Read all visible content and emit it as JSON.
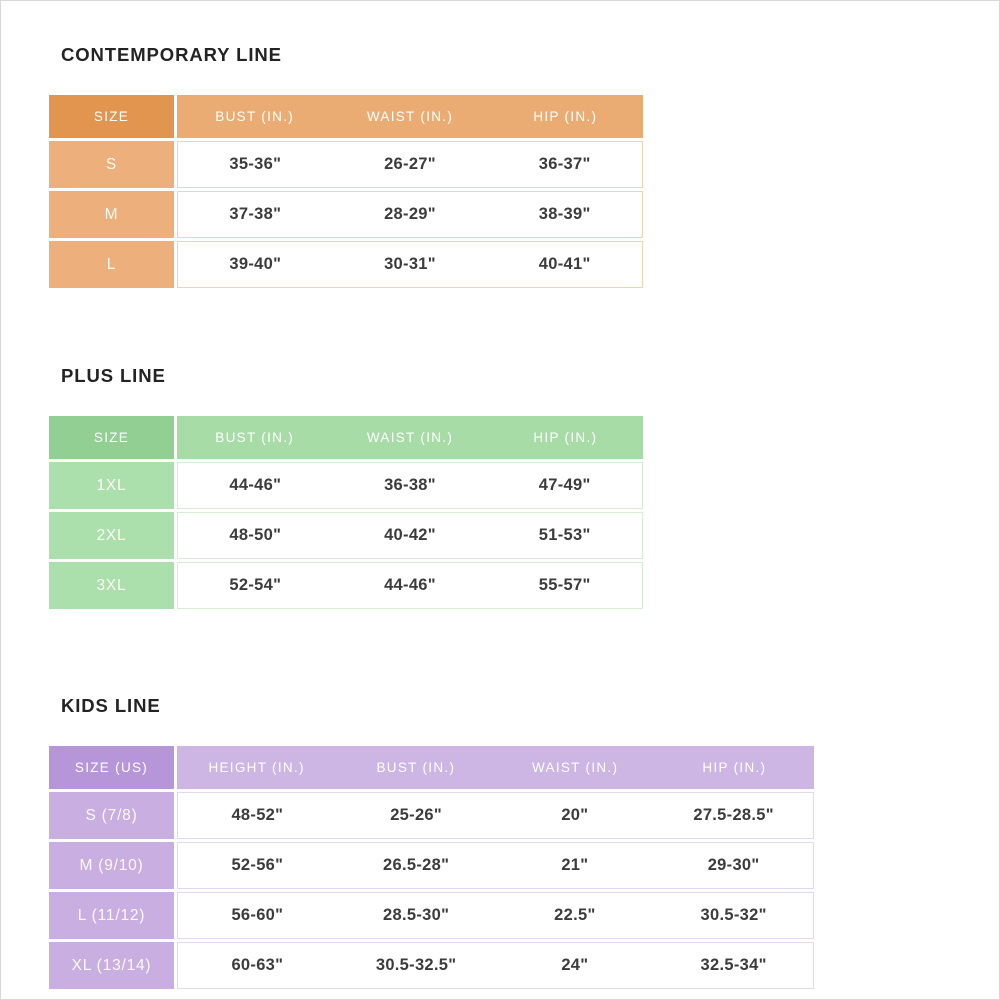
{
  "page": {
    "background": "#ffffff",
    "border_color": "#d8d8d8",
    "text_color": "#3c3c3c",
    "title_color": "#232323"
  },
  "sections": [
    {
      "title": "CONTEMPORARY LINE",
      "theme": {
        "header_size_bg": "#e2954e",
        "header_bg": "#ebac73",
        "size_col_bg": "#edaf7b",
        "row_border": "#f0d3b2",
        "header_text": "#ffffff"
      },
      "columns": [
        "SIZE",
        "BUST (IN.)",
        "WAIST (IN.)",
        "HIP (IN.)"
      ],
      "rows": [
        {
          "size": "S",
          "values": [
            "35-36\"",
            "26-27\"",
            "36-37\""
          ]
        },
        {
          "size": "M",
          "values": [
            "37-38\"",
            "28-29\"",
            "38-39\""
          ]
        },
        {
          "size": "L",
          "values": [
            "39-40\"",
            "30-31\"",
            "40-41\""
          ]
        }
      ]
    },
    {
      "title": "PLUS LINE",
      "theme": {
        "header_size_bg": "#92cf92",
        "header_bg": "#a7dca7",
        "size_col_bg": "#abdfab",
        "row_border": "#d4edd4",
        "header_text": "#ffffff"
      },
      "columns": [
        "SIZE",
        "BUST (IN.)",
        "WAIST (IN.)",
        "HIP (IN.)"
      ],
      "rows": [
        {
          "size": "1XL",
          "values": [
            "44-46\"",
            "36-38\"",
            "47-49\""
          ]
        },
        {
          "size": "2XL",
          "values": [
            "48-50\"",
            "40-42\"",
            "51-53\""
          ]
        },
        {
          "size": "3XL",
          "values": [
            "52-54\"",
            "44-46\"",
            "55-57\""
          ]
        }
      ]
    },
    {
      "title": "KIDS LINE",
      "theme": {
        "header_size_bg": "#b795d9",
        "header_bg": "#cdb5e4",
        "size_col_bg": "#c9aee1",
        "row_border": "#e4d8f0",
        "header_text": "#ffffff"
      },
      "columns": [
        "SIZE (US)",
        "HEIGHT (IN.)",
        "BUST (IN.)",
        "WAIST (IN.)",
        "HIP (IN.)"
      ],
      "rows": [
        {
          "size": "S (7/8)",
          "values": [
            "48-52\"",
            "25-26\"",
            "20\"",
            "27.5-28.5\""
          ]
        },
        {
          "size": "M (9/10)",
          "values": [
            "52-56\"",
            "26.5-28\"",
            "21\"",
            "29-30\""
          ]
        },
        {
          "size": "L (11/12)",
          "values": [
            "56-60\"",
            "28.5-30\"",
            "22.5\"",
            "30.5-32\""
          ]
        },
        {
          "size": "XL (13/14)",
          "values": [
            "60-63\"",
            "30.5-32.5\"",
            "24\"",
            "32.5-34\""
          ]
        }
      ]
    }
  ]
}
